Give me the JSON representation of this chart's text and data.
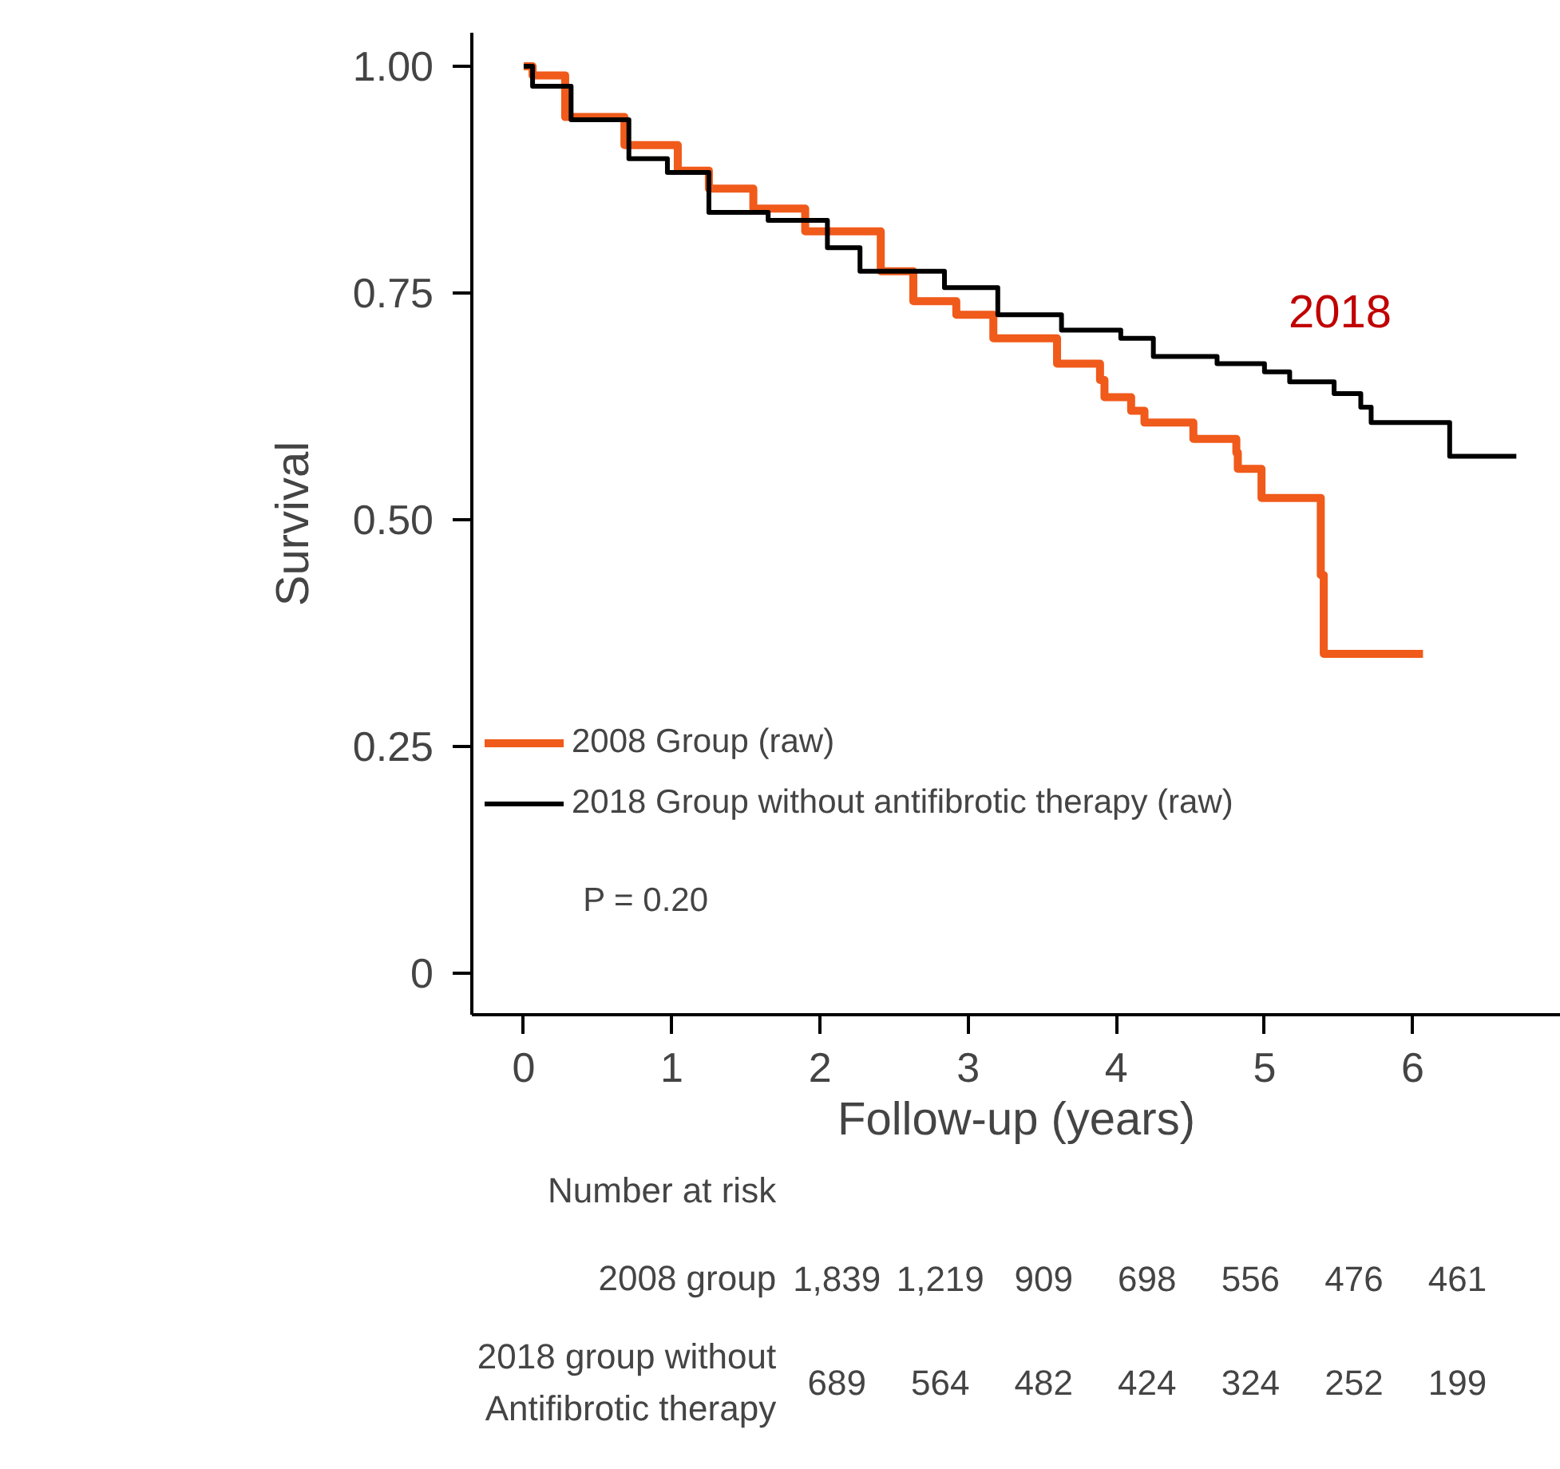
{
  "chart_data": {
    "type": "step",
    "xlabel": "Follow-up (years)",
    "ylabel": "Survival",
    "xlim": [
      -0.35,
      7.0
    ],
    "ylim": [
      -0.046,
      1.037
    ],
    "xticks": [
      0,
      1,
      2,
      3,
      4,
      5,
      6
    ],
    "yticks": [
      {
        "value": 0,
        "label": "0"
      },
      {
        "value": 0.25,
        "label": "0.25"
      },
      {
        "value": 0.5,
        "label": "0.50"
      },
      {
        "value": 0.75,
        "label": "0.75"
      },
      {
        "value": 1,
        "label": "1.00"
      }
    ],
    "grid": false,
    "legend": "bottom left",
    "line_style": "solid",
    "series": [
      {
        "name": "2008 Group (raw)",
        "color": "#f05a1a",
        "x": [
          0,
          0.06,
          0.28,
          0.68,
          1.04,
          1.25,
          1.55,
          1.9,
          2.41,
          2.63,
          2.92,
          3.17,
          3.6,
          3.89,
          3.92,
          4.1,
          4.19,
          4.52,
          4.81,
          4.82,
          4.98,
          5.38,
          5.4,
          6.07
        ],
        "values": [
          1.0,
          0.99,
          0.944,
          0.913,
          0.885,
          0.865,
          0.843,
          0.818,
          0.774,
          0.741,
          0.726,
          0.7,
          0.672,
          0.654,
          0.635,
          0.62,
          0.607,
          0.589,
          0.574,
          0.556,
          0.524,
          0.439,
          0.352,
          0.352
        ]
      },
      {
        "name": "2018 Group without antifibrotic therapy (raw)",
        "color": "#000000",
        "x": [
          0,
          0.06,
          0.32,
          0.71,
          0.97,
          1.25,
          1.65,
          2.05,
          2.27,
          2.84,
          3.2,
          3.63,
          4.03,
          4.25,
          4.68,
          5.0,
          5.17,
          5.47,
          5.65,
          5.72,
          6.25,
          6.7
        ],
        "values": [
          1.0,
          0.978,
          0.941,
          0.898,
          0.883,
          0.839,
          0.83,
          0.8,
          0.774,
          0.756,
          0.726,
          0.709,
          0.7,
          0.68,
          0.672,
          0.663,
          0.652,
          0.639,
          0.624,
          0.607,
          0.57,
          0.57
        ]
      }
    ],
    "annotations": [
      "2018",
      "P = 0.20",
      "Number at risk",
      "2008 group",
      "1,839",
      "1,219",
      "909",
      "698",
      "556",
      "476",
      "461",
      "2018 group without\nAntifibrotic therapy",
      "689",
      "564",
      "482",
      "424",
      "324",
      "252",
      "199"
    ]
  }
}
